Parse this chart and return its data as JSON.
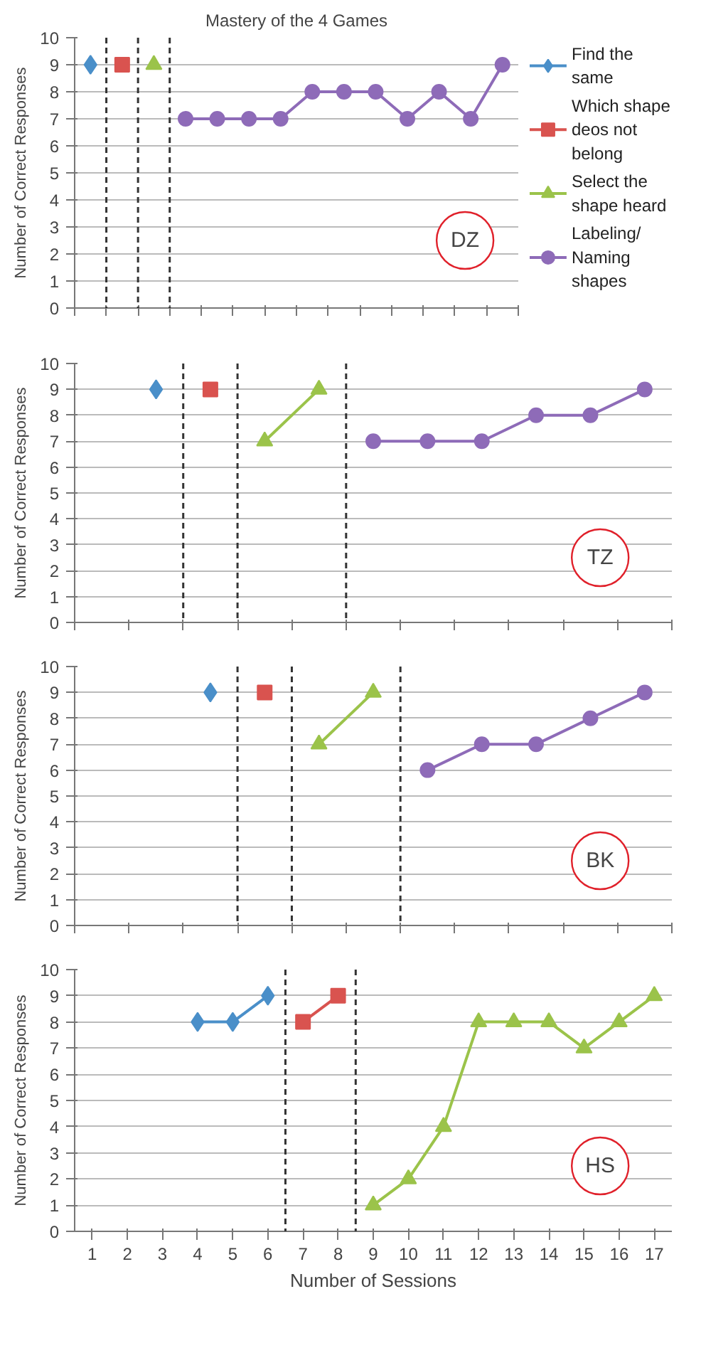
{
  "chart_data": [
    {
      "type": "line",
      "title": "Mastery of the 4 Games",
      "ylabel": "Number of Correct Responses",
      "categories": [
        null,
        null,
        null,
        null,
        null,
        null,
        null,
        null,
        null,
        null,
        null,
        null,
        null,
        null
      ],
      "ylim": [
        0,
        10
      ],
      "yticks": [
        0,
        1,
        2,
        3,
        4,
        5,
        6,
        7,
        8,
        9,
        10
      ],
      "grid": "y",
      "legend": "right",
      "tick_labels": "y",
      "annotations": [
        "DZ"
      ],
      "series": [
        {
          "name": "Find the same",
          "color": "#4a8fc9",
          "marker": "diamond",
          "values": [
            9,
            null,
            null,
            null,
            null,
            null,
            null,
            null,
            null,
            null,
            null,
            null,
            null,
            null
          ]
        },
        {
          "name": "Which shape deos not belong",
          "color": "#d9534f",
          "marker": "square",
          "values": [
            null,
            9,
            null,
            null,
            null,
            null,
            null,
            null,
            null,
            null,
            null,
            null,
            null,
            null
          ]
        },
        {
          "name": "Select the shape heard",
          "color": "#9bc34a",
          "marker": "triangle",
          "values": [
            null,
            null,
            9,
            null,
            null,
            null,
            null,
            null,
            null,
            null,
            null,
            null,
            null,
            null
          ]
        },
        {
          "name": "Labeling/ Naming shapes",
          "color": "#8e6bb8",
          "marker": "circle",
          "values": [
            null,
            null,
            null,
            7,
            7,
            7,
            7,
            8,
            8,
            8,
            7,
            8,
            7,
            9
          ]
        }
      ]
    },
    {
      "type": "line",
      "ylabel": "Number of Correct Responses",
      "categories": [
        null,
        null,
        null,
        null,
        null,
        null,
        null,
        null,
        null,
        null,
        null
      ],
      "ylim": [
        0,
        10
      ],
      "yticks": [
        0,
        1,
        2,
        3,
        4,
        5,
        6,
        7,
        8,
        9,
        10
      ],
      "grid": "y",
      "tick_labels": "y",
      "annotations": [
        "TZ"
      ],
      "series": [
        {
          "color": "#4a8fc9",
          "marker": "diamond",
          "values": [
            null,
            9,
            null,
            null,
            null,
            null,
            null,
            null,
            null,
            null,
            null
          ]
        },
        {
          "color": "#d9534f",
          "marker": "square",
          "values": [
            null,
            null,
            9,
            null,
            null,
            null,
            null,
            null,
            null,
            null,
            null
          ]
        },
        {
          "color": "#9bc34a",
          "marker": "triangle",
          "values": [
            null,
            null,
            null,
            7,
            9,
            null,
            null,
            null,
            null,
            null,
            null
          ]
        },
        {
          "color": "#8e6bb8",
          "marker": "circle",
          "values": [
            null,
            null,
            null,
            null,
            null,
            7,
            7,
            7,
            8,
            8,
            9
          ]
        }
      ]
    },
    {
      "type": "line",
      "ylabel": "Number of Correct Responses",
      "categories": [
        null,
        null,
        null,
        null,
        null,
        null,
        null,
        null,
        null,
        null,
        null
      ],
      "ylim": [
        0,
        10
      ],
      "yticks": [
        0,
        1,
        2,
        3,
        4,
        5,
        6,
        7,
        8,
        9,
        10
      ],
      "grid": "y",
      "tick_labels": "y",
      "annotations": [
        "BK"
      ],
      "series": [
        {
          "color": "#4a8fc9",
          "marker": "diamond",
          "values": [
            null,
            null,
            9,
            null,
            null,
            null,
            null,
            null,
            null,
            null,
            null
          ]
        },
        {
          "color": "#d9534f",
          "marker": "square",
          "values": [
            null,
            null,
            null,
            9,
            null,
            null,
            null,
            null,
            null,
            null,
            null
          ]
        },
        {
          "color": "#9bc34a",
          "marker": "triangle",
          "values": [
            null,
            null,
            null,
            null,
            7,
            9,
            null,
            null,
            null,
            null,
            null
          ]
        },
        {
          "color": "#8e6bb8",
          "marker": "circle",
          "values": [
            null,
            null,
            null,
            null,
            null,
            null,
            6,
            7,
            7,
            8,
            9
          ]
        }
      ]
    },
    {
      "type": "line",
      "ylabel": "Number of Correct Responses",
      "xlabel": "Number of Sessions",
      "xlim": [
        0.5,
        17.5
      ],
      "xticks": [
        1,
        2,
        3,
        4,
        5,
        6,
        7,
        8,
        9,
        10,
        11,
        12,
        13,
        14,
        15,
        16,
        17
      ],
      "ylim": [
        0,
        10
      ],
      "yticks": [
        0,
        1,
        2,
        3,
        4,
        5,
        6,
        7,
        8,
        9,
        10
      ],
      "grid": "y",
      "annotations": [
        "HS"
      ],
      "ref_lines": [
        {
          "axis": "x",
          "value": 6.5,
          "line_style": "dashed",
          "color": "#333333"
        },
        {
          "axis": "x",
          "value": 8.5,
          "line_style": "dashed",
          "color": "#333333"
        }
      ],
      "series": [
        {
          "color": "#4a8fc9",
          "marker": "diamond",
          "x": [
            4,
            5,
            6
          ],
          "values": [
            8,
            8,
            9
          ]
        },
        {
          "color": "#d9534f",
          "marker": "square",
          "x": [
            7,
            8
          ],
          "values": [
            8,
            9
          ]
        },
        {
          "color": "#9bc34a",
          "marker": "triangle",
          "x": [
            9,
            10,
            11,
            12,
            13,
            14,
            15,
            16,
            17
          ],
          "values": [
            1,
            2,
            4,
            8,
            8,
            8,
            7,
            8,
            9
          ]
        }
      ]
    }
  ]
}
